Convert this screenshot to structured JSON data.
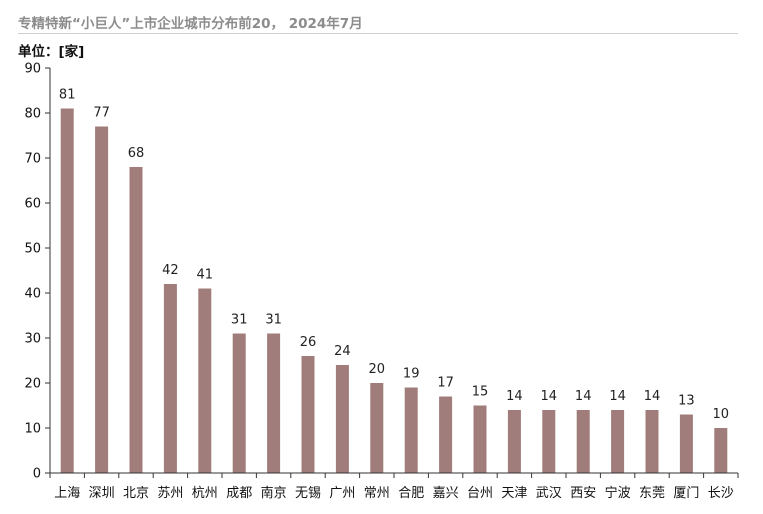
{
  "chart_data": {
    "type": "bar",
    "title": "专精特新“小巨人”上市企业城市分布前20， 2024年7月",
    "unit": "单位：[家]",
    "categories": [
      "上海",
      "深圳",
      "北京",
      "苏州",
      "杭州",
      "成都",
      "南京",
      "无锡",
      "广州",
      "常州",
      "合肥",
      "嘉兴",
      "台州",
      "天津",
      "武汉",
      "西安",
      "宁波",
      "东莞",
      "厦门",
      "长沙"
    ],
    "series": [
      {
        "values": [
          81,
          77,
          68,
          42,
          41,
          31,
          31,
          26,
          24,
          20,
          19,
          17,
          15,
          14,
          14,
          14,
          14,
          14,
          13,
          10
        ]
      }
    ],
    "ylim": [
      0,
      90
    ],
    "yticks": [
      0,
      10,
      20,
      30,
      40,
      50,
      60,
      70,
      80,
      90
    ],
    "data_labels": true,
    "grid": false,
    "legend": "none",
    "bar_color": "#a07c7a"
  }
}
